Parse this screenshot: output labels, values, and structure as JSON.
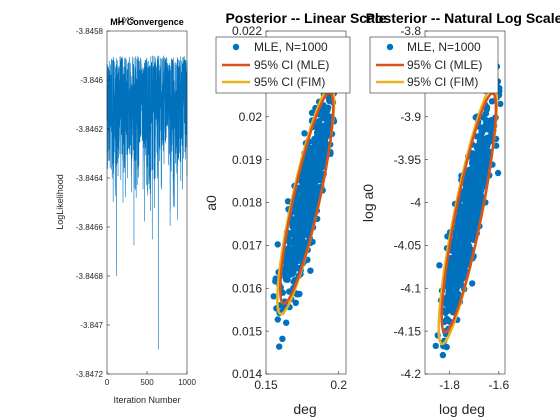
{
  "colors": {
    "points": "#0072BD",
    "mle_ellipse": "#D95319",
    "fim_ellipse": "#EDB120",
    "axis": "#262626",
    "trace": "#0072BD"
  },
  "chart_data": [
    {
      "type": "line",
      "title": "MH Convergence",
      "xlabel": "Iteration Number",
      "ylabel": "LogLikelihood",
      "xlim": [
        0,
        1000
      ],
      "ylim": [
        -3.8472,
        -3.8458
      ],
      "xticks": [
        "0",
        "500",
        "1000"
      ],
      "yticks": [
        "-3.8458",
        "-3.846",
        "-3.8462",
        "-3.8464",
        "-3.8466",
        "-3.8468",
        "-3.847",
        "-3.8472"
      ],
      "exponent_label": "10^3",
      "series": [
        {
          "x_range": [
            1,
            1000
          ],
          "mean": -3.8461,
          "spread": 0.0003,
          "min": -3.8471,
          "max": -3.8459
        }
      ]
    },
    {
      "type": "scatter",
      "title": "Posterior -- Linear Scale",
      "xlabel": "deg",
      "ylabel": "a0",
      "xlim": [
        0.15,
        0.205
      ],
      "ylim": [
        0.014,
        0.022
      ],
      "xticks": [
        "0.15",
        "0.2"
      ],
      "yticks": [
        "0.014",
        "0.015",
        "0.016",
        "0.017",
        "0.018",
        "0.019",
        "0.02",
        "0.021",
        "0.022"
      ],
      "center": [
        0.178,
        0.0181
      ],
      "legend": [
        "MLE, N=1000",
        "95% CI (MLE)",
        "95% CI (FIM)"
      ],
      "legend_location": "top"
    },
    {
      "type": "scatter",
      "title": "Posterior -- Natural Log Scale",
      "xlabel": "log deg",
      "ylabel": "log a0",
      "xlim": [
        -1.9,
        -1.575
      ],
      "ylim": [
        -4.2,
        -3.8
      ],
      "xticks": [
        "-1.8",
        "-1.6"
      ],
      "yticks": [
        "-3.8",
        "-3.85",
        "-3.9",
        "-3.95",
        "-4",
        "-4.05",
        "-4.1",
        "-4.15",
        "-4.2"
      ],
      "center": [
        -1.722,
        -4.012
      ],
      "legend": [
        "MLE, N=1000",
        "95% CI (MLE)",
        "95% CI (FIM)"
      ],
      "legend_location": "top"
    }
  ]
}
